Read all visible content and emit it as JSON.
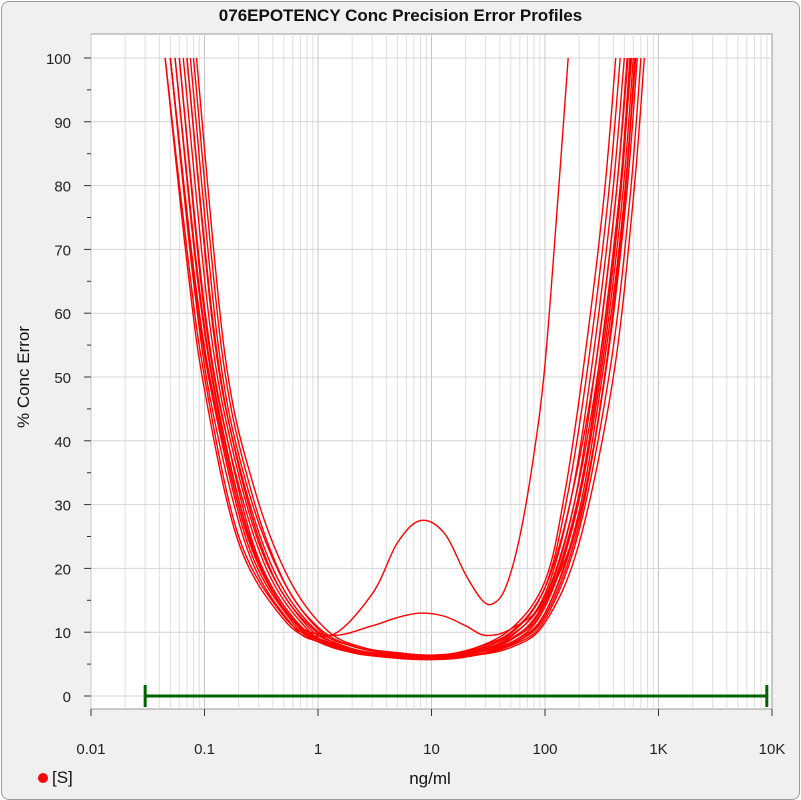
{
  "chart_data": {
    "type": "line",
    "title": "076EPOTENCY Conc Precision Error Profiles",
    "xlabel": "ng/ml",
    "ylabel": "% Conc Error",
    "x_scale": "log",
    "xlim": [
      0.01,
      10000
    ],
    "ylim": [
      0,
      100
    ],
    "x_ticks": [
      {
        "value": 0.01,
        "label": "0.01"
      },
      {
        "value": 0.1,
        "label": "0.1"
      },
      {
        "value": 1,
        "label": "1"
      },
      {
        "value": 10,
        "label": "10"
      },
      {
        "value": 100,
        "label": "100"
      },
      {
        "value": 1000,
        "label": "1K"
      },
      {
        "value": 10000,
        "label": "10K"
      }
    ],
    "y_ticks": [
      0,
      10,
      20,
      30,
      40,
      50,
      60,
      70,
      80,
      90,
      100
    ],
    "grid": true,
    "legend": {
      "placement": "bottom-left",
      "entries": [
        {
          "label": "[S]",
          "color": "#ff0000"
        }
      ]
    },
    "line_color": "#ff0000",
    "range_color": "#006400",
    "working_range": {
      "from": 0.03,
      "to": 9000,
      "y": 0
    },
    "series": [
      {
        "points": [
          [
            0.045,
            100
          ],
          [
            0.07,
            68
          ],
          [
            0.1,
            48
          ],
          [
            0.2,
            24
          ],
          [
            0.5,
            12
          ],
          [
            1,
            8.5
          ],
          [
            2,
            6.8
          ],
          [
            5,
            5.9
          ],
          [
            10,
            5.7
          ],
          [
            20,
            6.1
          ],
          [
            50,
            8.0
          ],
          [
            100,
            13
          ],
          [
            200,
            29
          ],
          [
            350,
            55
          ],
          [
            500,
            78
          ],
          [
            620,
            100
          ]
        ]
      },
      {
        "points": [
          [
            0.05,
            100
          ],
          [
            0.08,
            65
          ],
          [
            0.12,
            44
          ],
          [
            0.25,
            22
          ],
          [
            0.6,
            11
          ],
          [
            1,
            8.5
          ],
          [
            2,
            6.9
          ],
          [
            5,
            6.0
          ],
          [
            10,
            5.8
          ],
          [
            20,
            6.2
          ],
          [
            50,
            8.3
          ],
          [
            100,
            14
          ],
          [
            200,
            31
          ],
          [
            300,
            52
          ],
          [
            450,
            78
          ],
          [
            580,
            100
          ]
        ]
      },
      {
        "points": [
          [
            0.055,
            100
          ],
          [
            0.09,
            63
          ],
          [
            0.15,
            40
          ],
          [
            0.3,
            21
          ],
          [
            0.7,
            10.5
          ],
          [
            1.5,
            7.5
          ],
          [
            3,
            6.3
          ],
          [
            10,
            5.9
          ],
          [
            20,
            6.4
          ],
          [
            50,
            8.8
          ],
          [
            100,
            15
          ],
          [
            180,
            30
          ],
          [
            280,
            52
          ],
          [
            420,
            78
          ],
          [
            540,
            100
          ]
        ]
      },
      {
        "points": [
          [
            0.06,
            100
          ],
          [
            0.1,
            60
          ],
          [
            0.17,
            38
          ],
          [
            0.35,
            20
          ],
          [
            0.8,
            10.5
          ],
          [
            1.5,
            7.8
          ],
          [
            3,
            6.5
          ],
          [
            10,
            6.0
          ],
          [
            20,
            6.6
          ],
          [
            50,
            9.3
          ],
          [
            100,
            16
          ],
          [
            170,
            31
          ],
          [
            260,
            52
          ],
          [
            390,
            78
          ],
          [
            500,
            100
          ]
        ]
      },
      {
        "points": [
          [
            0.07,
            100
          ],
          [
            0.12,
            58
          ],
          [
            0.2,
            36
          ],
          [
            0.4,
            19
          ],
          [
            0.9,
            10.5
          ],
          [
            2,
            7.4
          ],
          [
            4,
            6.5
          ],
          [
            10,
            6.1
          ],
          [
            20,
            6.8
          ],
          [
            50,
            9.8
          ],
          [
            100,
            17
          ],
          [
            160,
            32
          ],
          [
            240,
            52
          ],
          [
            360,
            78
          ],
          [
            460,
            100
          ]
        ]
      },
      {
        "points": [
          [
            0.08,
            100
          ],
          [
            0.14,
            55
          ],
          [
            0.25,
            33
          ],
          [
            0.5,
            18
          ],
          [
            1,
            10.8
          ],
          [
            2,
            7.8
          ],
          [
            5,
            6.5
          ],
          [
            10,
            6.2
          ],
          [
            20,
            7.0
          ],
          [
            50,
            10.5
          ],
          [
            100,
            18
          ],
          [
            150,
            32
          ],
          [
            220,
            52
          ],
          [
            330,
            78
          ],
          [
            420,
            100
          ]
        ]
      },
      {
        "points": [
          [
            0.045,
            100
          ],
          [
            0.07,
            70
          ],
          [
            0.1,
            50
          ],
          [
            0.2,
            25
          ],
          [
            0.5,
            12.5
          ],
          [
            1,
            8.8
          ],
          [
            2,
            7.0
          ],
          [
            5,
            6.1
          ],
          [
            10,
            5.9
          ],
          [
            20,
            6.2
          ],
          [
            50,
            7.6
          ],
          [
            100,
            11.5
          ],
          [
            200,
            24
          ],
          [
            400,
            50
          ],
          [
            600,
            78
          ],
          [
            750,
            100
          ]
        ]
      },
      {
        "points": [
          [
            0.05,
            100
          ],
          [
            0.08,
            66
          ],
          [
            0.12,
            46
          ],
          [
            0.25,
            23
          ],
          [
            0.6,
            11.5
          ],
          [
            1,
            8.8
          ],
          [
            2,
            7.1
          ],
          [
            5,
            6.2
          ],
          [
            10,
            6.0
          ],
          [
            20,
            6.3
          ],
          [
            50,
            7.9
          ],
          [
            100,
            12
          ],
          [
            200,
            26
          ],
          [
            380,
            52
          ],
          [
            560,
            78
          ],
          [
            700,
            100
          ]
        ]
      },
      {
        "points": [
          [
            0.06,
            100
          ],
          [
            0.1,
            61
          ],
          [
            0.16,
            40
          ],
          [
            0.3,
            21.5
          ],
          [
            0.7,
            11
          ],
          [
            1.5,
            8.0
          ],
          [
            3,
            6.6
          ],
          [
            10,
            6.1
          ],
          [
            20,
            6.5
          ],
          [
            50,
            8.4
          ],
          [
            100,
            13
          ],
          [
            200,
            28
          ],
          [
            350,
            52
          ],
          [
            520,
            78
          ],
          [
            650,
            100
          ]
        ]
      },
      {
        "points": [
          [
            0.065,
            100
          ],
          [
            0.11,
            59
          ],
          [
            0.18,
            38
          ],
          [
            0.35,
            21
          ],
          [
            0.8,
            11
          ],
          [
            1.5,
            8.2
          ],
          [
            3,
            6.8
          ],
          [
            10,
            6.2
          ],
          [
            20,
            6.7
          ],
          [
            50,
            8.8
          ],
          [
            100,
            14
          ],
          [
            190,
            29
          ],
          [
            320,
            52
          ],
          [
            480,
            78
          ],
          [
            600,
            100
          ]
        ]
      },
      {
        "points": [
          [
            0.075,
            100
          ],
          [
            0.13,
            56
          ],
          [
            0.22,
            35
          ],
          [
            0.45,
            19.5
          ],
          [
            1,
            10.5
          ],
          [
            2,
            7.8
          ],
          [
            5,
            6.6
          ],
          [
            10,
            6.3
          ],
          [
            20,
            6.9
          ],
          [
            50,
            9.5
          ],
          [
            100,
            15.5
          ],
          [
            180,
            30
          ],
          [
            300,
            52
          ],
          [
            450,
            78
          ],
          [
            560,
            100
          ]
        ]
      },
      {
        "points": [
          [
            0.085,
            100
          ],
          [
            0.15,
            54
          ],
          [
            0.27,
            33
          ],
          [
            0.55,
            18.5
          ],
          [
            1.2,
            10.3
          ],
          [
            2.5,
            7.6
          ],
          [
            5,
            6.8
          ],
          [
            10,
            6.4
          ],
          [
            20,
            7.1
          ],
          [
            50,
            10
          ],
          [
            100,
            17
          ],
          [
            170,
            31
          ],
          [
            280,
            52
          ],
          [
            420,
            78
          ],
          [
            530,
            100
          ]
        ]
      },
      {
        "points": [
          [
            0.055,
            100
          ],
          [
            0.09,
            64
          ],
          [
            0.14,
            43
          ],
          [
            0.28,
            22
          ],
          [
            0.65,
            11.2
          ],
          [
            1.3,
            8.3
          ],
          [
            3,
            6.7
          ],
          [
            10,
            6.3
          ],
          [
            20,
            6.6
          ],
          [
            50,
            8.2
          ],
          [
            100,
            12.5
          ],
          [
            200,
            27
          ],
          [
            340,
            51
          ],
          [
            500,
            77
          ],
          [
            620,
            100
          ]
        ]
      },
      {
        "points": [
          [
            0.07,
            100
          ],
          [
            0.12,
            57
          ],
          [
            0.2,
            36.5
          ],
          [
            0.4,
            20
          ],
          [
            0.9,
            10.8
          ],
          [
            2,
            7.9
          ],
          [
            4,
            6.8
          ],
          [
            10,
            6.4
          ],
          [
            20,
            6.9
          ],
          [
            50,
            9.0
          ],
          [
            100,
            14.5
          ],
          [
            190,
            30
          ],
          [
            310,
            52
          ],
          [
            460,
            78
          ],
          [
            570,
            100
          ]
        ]
      },
      {
        "points": [
          [
            0.05,
            100
          ],
          [
            0.08,
            67
          ],
          [
            0.12,
            47
          ],
          [
            0.25,
            24
          ],
          [
            0.6,
            12
          ],
          [
            1.3,
            9.5
          ],
          [
            3,
            16
          ],
          [
            5,
            24
          ],
          [
            8,
            27.5
          ],
          [
            13,
            25.5
          ],
          [
            20,
            19
          ],
          [
            28,
            15
          ],
          [
            35,
            14.5
          ],
          [
            45,
            17
          ],
          [
            60,
            25
          ],
          [
            80,
            38
          ],
          [
            100,
            52
          ],
          [
            130,
            78
          ],
          [
            160,
            100
          ]
        ]
      },
      {
        "points": [
          [
            0.05,
            100
          ],
          [
            0.08,
            67
          ],
          [
            0.12,
            47
          ],
          [
            0.25,
            24
          ],
          [
            0.6,
            12
          ],
          [
            1.3,
            9.5
          ],
          [
            3,
            11
          ],
          [
            5,
            12.3
          ],
          [
            8,
            13
          ],
          [
            13,
            12.5
          ],
          [
            20,
            11
          ],
          [
            30,
            9.5
          ],
          [
            50,
            10.5
          ],
          [
            100,
            15
          ],
          [
            200,
            28
          ],
          [
            350,
            52
          ],
          [
            500,
            78
          ],
          [
            630,
            100
          ]
        ]
      }
    ]
  },
  "legend": {
    "label": "[S]"
  }
}
